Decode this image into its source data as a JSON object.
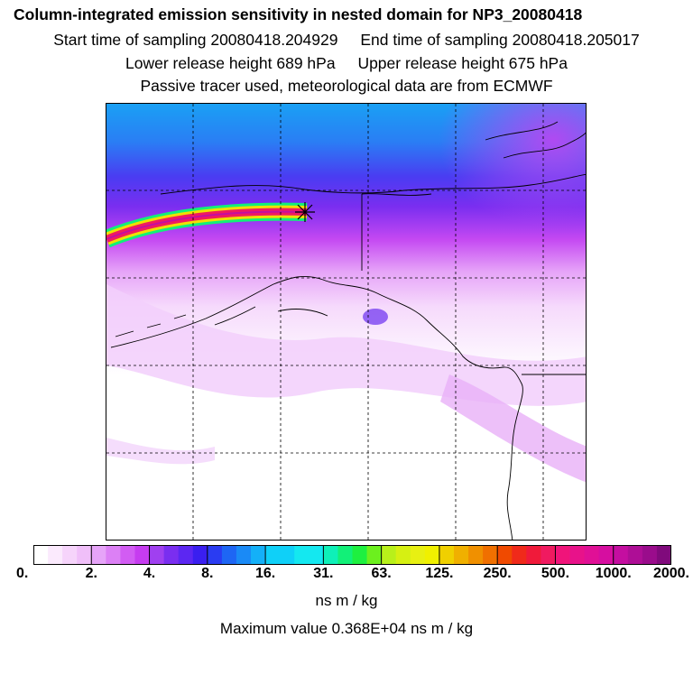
{
  "header": {
    "title": "Column-integrated emission sensitivity in nested domain for NP3_20080418",
    "start_time": "Start time of sampling 20080418.204929",
    "end_time": "End time of sampling 20080418.205017",
    "lower_release": "Lower release height  689 hPa",
    "upper_release": "Upper release height  675 hPa",
    "note": "Passive tracer used, meteorological data are from ECMWF"
  },
  "chart_data": {
    "type": "heatmap",
    "title": "Column-integrated emission sensitivity in nested domain for NP3_20080418",
    "grid": true,
    "legend": "bottom colorbar",
    "colorbar": {
      "units": "ns m / kg",
      "tick_labels": [
        "0.",
        "2.",
        "4.",
        "8.",
        "16.",
        "31.",
        "63.",
        "125.",
        "250.",
        "500.",
        "1000.",
        "2000."
      ],
      "bin_colors": [
        [
          "#ffffff",
          "#fbeafd",
          "#f6d4fb",
          "#f0bff9"
        ],
        [
          "#e6a4f8",
          "#dc80f5",
          "#d25cf3",
          "#c63cf0"
        ],
        [
          "#a040f0",
          "#7a2ef0",
          "#5c27f2",
          "#3a1ff0"
        ],
        [
          "#2a3cf2",
          "#1e66f4",
          "#1a8af6",
          "#14b0f8"
        ],
        [
          "#0fd0f8",
          "#14e8f0"
        ],
        [
          "#0ef0b8",
          "#12f078",
          "#1ef040",
          "#6cf01e"
        ],
        [
          "#b8f01a",
          "#d6f012",
          "#e8f012",
          "#f0f000"
        ],
        [
          "#f0d000",
          "#f0b000",
          "#f09000",
          "#f07000"
        ],
        [
          "#f04a00",
          "#f02a1a",
          "#f01a3a",
          "#f01a60"
        ],
        [
          "#f0147a",
          "#e8128a",
          "#e01096",
          "#d60ea0"
        ],
        [
          "#c40ea0",
          "#ae0e96",
          "#9a0c8c",
          "#800a7c"
        ]
      ]
    },
    "max_value_text": "Maximum value  0.368E+04 ns m / kg",
    "max_value": 3680,
    "sampling_start": "20080418.204929",
    "sampling_end": "20080418.205017",
    "release_height_lower_hPa": 689,
    "release_height_upper_hPa": 675
  }
}
